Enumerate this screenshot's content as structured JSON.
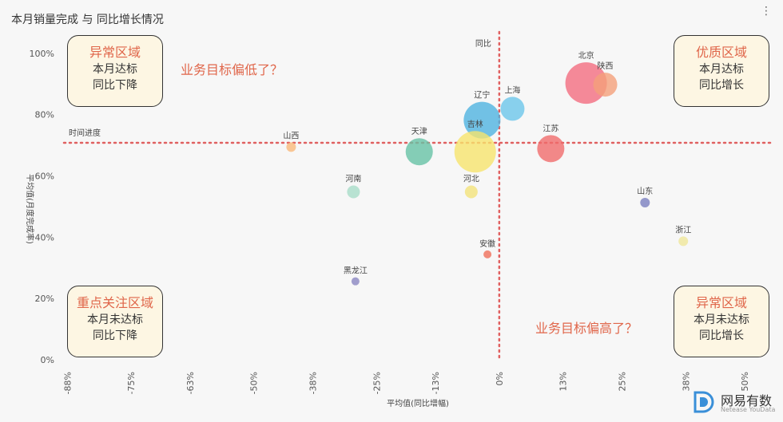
{
  "title": "本月销量完成 与 同比增长情况",
  "menu_icon": "more-vertical-icon",
  "quadrants": {
    "top_left": {
      "heading": "异常区域",
      "line1": "本月达标",
      "line2": "同比下降"
    },
    "top_right": {
      "heading": "优质区域",
      "line1": "本月达标",
      "line2": "同比增长"
    },
    "bottom_left": {
      "heading": "重点关注区域",
      "line1": "本月未达标",
      "line2": "同比下降"
    },
    "bottom_right": {
      "heading": "异常区域",
      "line1": "本月未达标",
      "line2": "同比增长"
    }
  },
  "notes": {
    "low_target": "业务目标偏低了？",
    "high_target": "业务目标偏高了？"
  },
  "logo": {
    "name": "网易有数",
    "sub": "Netease YouData"
  },
  "chart_data": {
    "type": "scatter",
    "xlabel": "平均值(同比增幅)",
    "ylabel": "平均值(月度完成率)",
    "x_ticks": [
      "-88%",
      "-75%",
      "-63%",
      "-50%",
      "-38%",
      "-25%",
      "-13%",
      "0%",
      "13%",
      "25%",
      "38%",
      "50%"
    ],
    "x_tick_values": [
      -88,
      -75,
      -63,
      -50,
      -38,
      -25,
      -13,
      0,
      13,
      25,
      38,
      50
    ],
    "y_ticks": [
      "0%",
      "20%",
      "40%",
      "60%",
      "80%",
      "100%"
    ],
    "y_tick_values": [
      0,
      20,
      40,
      60,
      80,
      100
    ],
    "xlim": [
      -90,
      57
    ],
    "ylim": [
      0,
      107
    ],
    "ref_lines": {
      "x_value": 0,
      "x_label": "同比",
      "y_value": 70.8,
      "y_label": "时间进度"
    },
    "points": [
      {
        "name": "北京",
        "x": 17.7,
        "y": 90.3,
        "size": 26,
        "color": "#f36d7f"
      },
      {
        "name": "陕西",
        "x": 21.6,
        "y": 89.8,
        "size": 15,
        "color": "#f4a07a"
      },
      {
        "name": "上海",
        "x": 2.7,
        "y": 81.9,
        "size": 15,
        "color": "#6cc6ea"
      },
      {
        "name": "辽宁",
        "x": -3.5,
        "y": 78.2,
        "size": 23,
        "color": "#4fb3e0"
      },
      {
        "name": "吉林",
        "x": -4.9,
        "y": 67.9,
        "size": 26,
        "color": "#f6e36d"
      },
      {
        "name": "江苏",
        "x": 10.5,
        "y": 68.9,
        "size": 17,
        "color": "#f06c6c"
      },
      {
        "name": "天津",
        "x": -16.3,
        "y": 67.9,
        "size": 17,
        "color": "#66c2a5"
      },
      {
        "name": "山西",
        "x": -42.4,
        "y": 69.4,
        "size": 6,
        "color": "#f9b97a"
      },
      {
        "name": "河南",
        "x": -29.7,
        "y": 54.8,
        "size": 8,
        "color": "#a7dcc8"
      },
      {
        "name": "河北",
        "x": -5.7,
        "y": 54.8,
        "size": 8,
        "color": "#f3e27a"
      },
      {
        "name": "山东",
        "x": 29.7,
        "y": 51.3,
        "size": 6,
        "color": "#7b7fbf"
      },
      {
        "name": "浙江",
        "x": 37.5,
        "y": 38.7,
        "size": 6,
        "color": "#efe69a"
      },
      {
        "name": "安徽",
        "x": -2.4,
        "y": 34.4,
        "size": 5,
        "color": "#ef6f5a"
      },
      {
        "name": "黑龙江",
        "x": -29.3,
        "y": 25.6,
        "size": 5,
        "color": "#8a86c0"
      }
    ]
  }
}
